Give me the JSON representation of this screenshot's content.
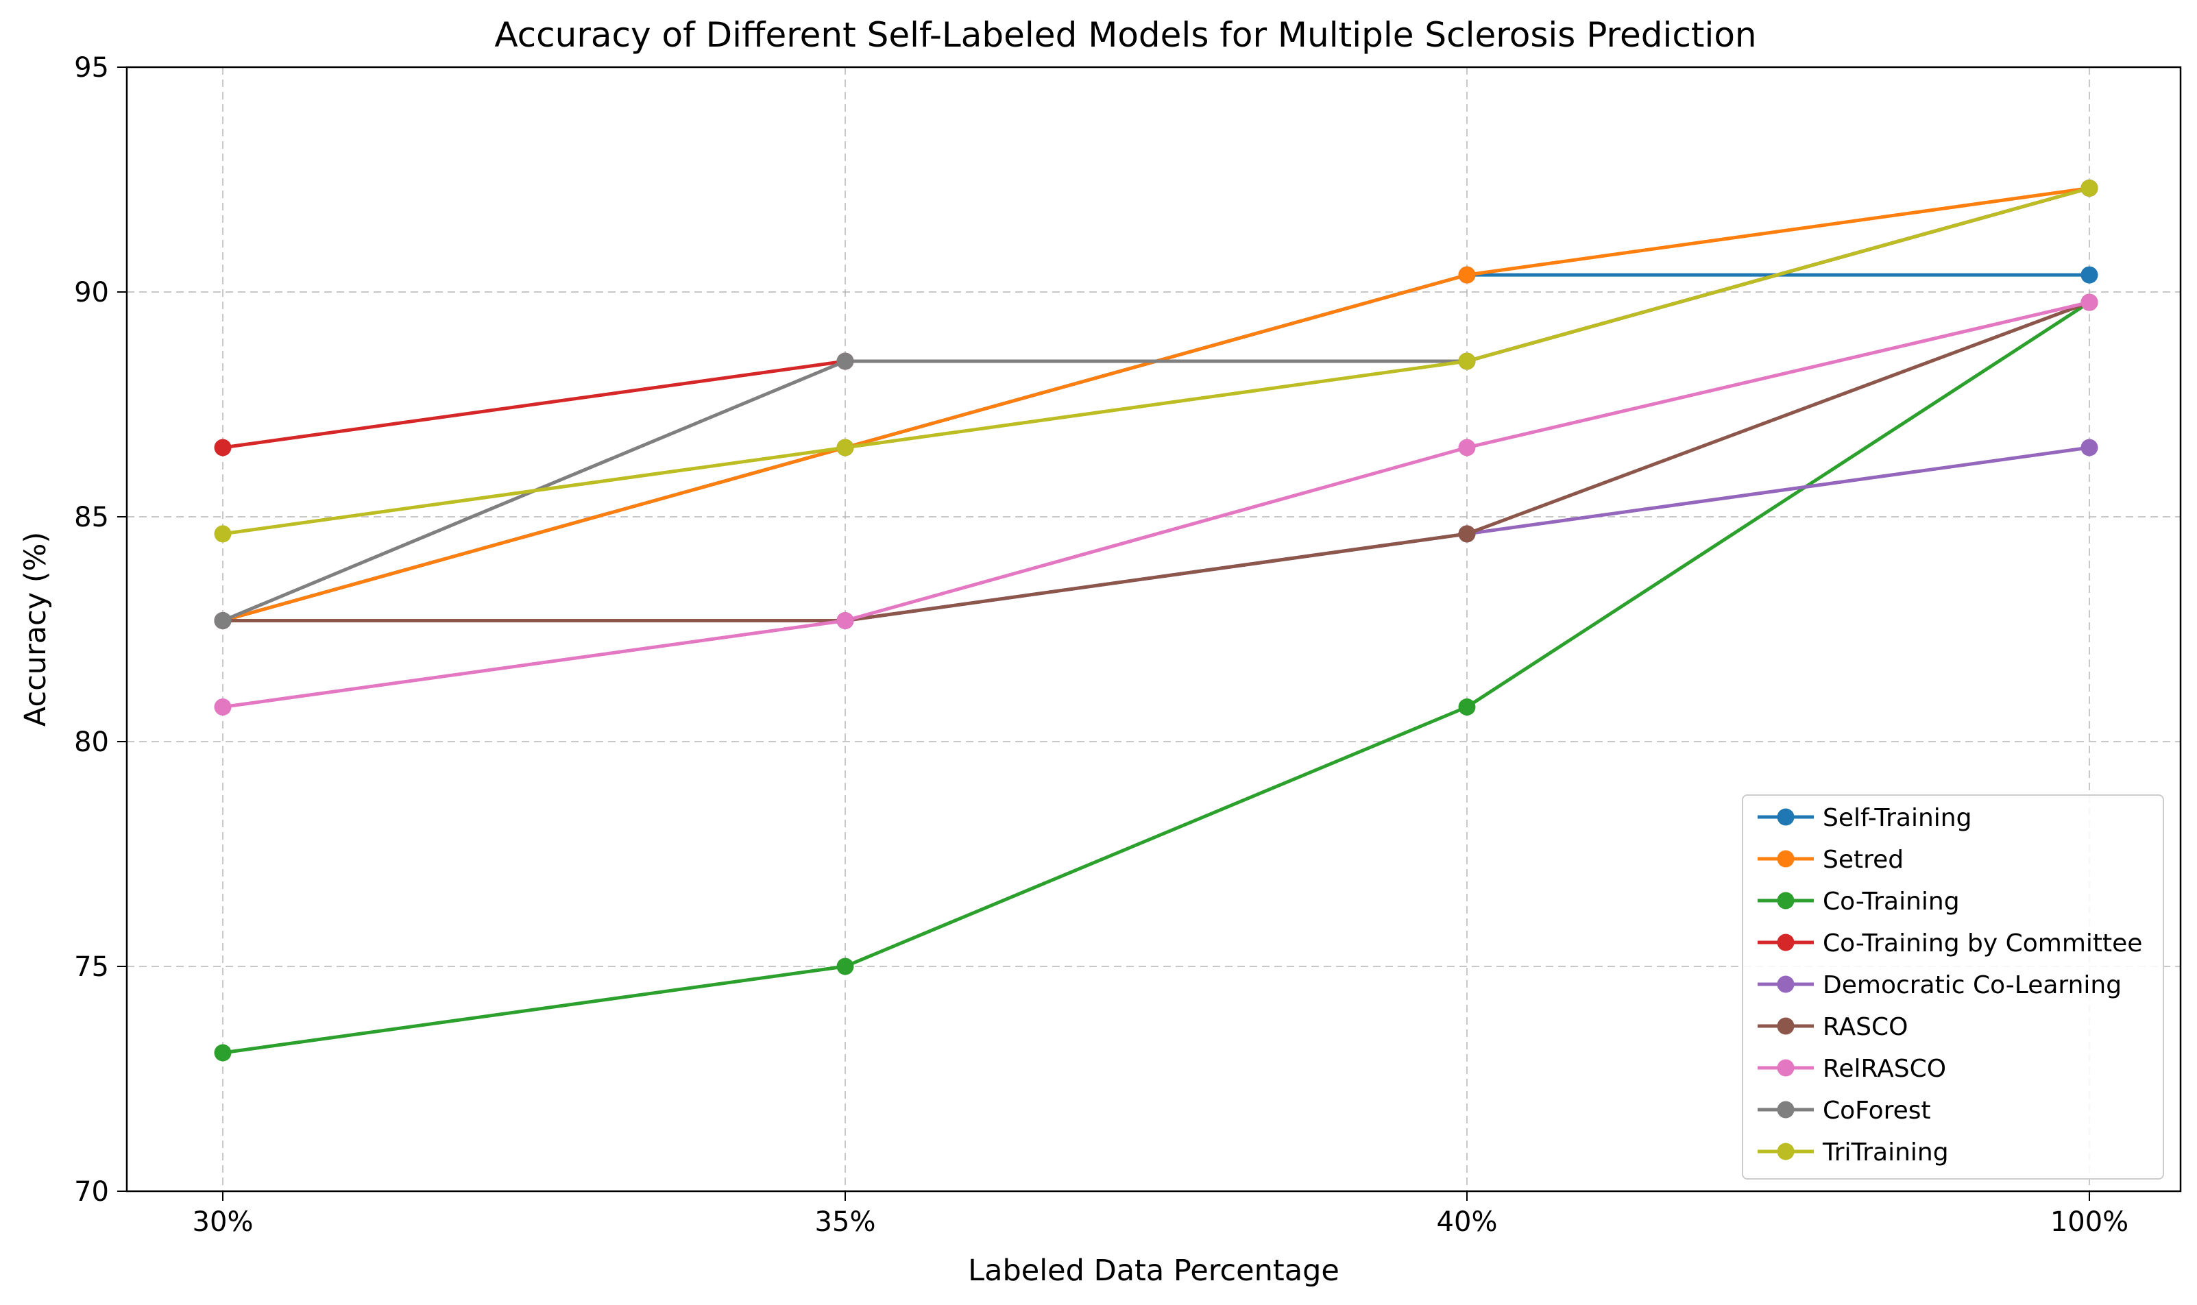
{
  "chart_data": {
    "type": "line",
    "title": "Accuracy of Different Self-Labeled Models for Multiple Sclerosis Prediction",
    "xlabel": "Labeled Data Percentage",
    "ylabel": "Accuracy (%)",
    "categories": [
      "30%",
      "35%",
      "40%",
      "100%"
    ],
    "ylim": [
      70,
      95
    ],
    "yticks": [
      70,
      75,
      80,
      85,
      90,
      95
    ],
    "grid": true,
    "legend_position": "lower-right",
    "series": [
      {
        "name": "Self-Training",
        "color": "#1f77b4",
        "values": [
          82.69,
          86.54,
          90.38,
          90.38
        ]
      },
      {
        "name": "Setred",
        "color": "#ff7f0e",
        "values": [
          82.69,
          86.54,
          90.38,
          92.31
        ]
      },
      {
        "name": "Co-Training",
        "color": "#2ca02c",
        "values": [
          73.08,
          75.0,
          80.77,
          89.77
        ]
      },
      {
        "name": "Co-Training by Committee",
        "color": "#d62728",
        "values": [
          86.54,
          88.46,
          88.46,
          92.31
        ]
      },
      {
        "name": "Democratic Co-Learning",
        "color": "#9467bd",
        "values": [
          82.69,
          82.69,
          84.62,
          86.54
        ]
      },
      {
        "name": "RASCO",
        "color": "#8c564b",
        "values": [
          82.69,
          82.69,
          84.62,
          89.77
        ]
      },
      {
        "name": "RelRASCO",
        "color": "#e377c2",
        "values": [
          80.77,
          82.69,
          86.54,
          89.77
        ]
      },
      {
        "name": "CoForest",
        "color": "#7f7f7f",
        "values": [
          82.69,
          88.46,
          88.46,
          92.31
        ]
      },
      {
        "name": "TriTraining",
        "color": "#bcbd22",
        "values": [
          84.62,
          86.54,
          88.46,
          92.31
        ]
      }
    ]
  }
}
